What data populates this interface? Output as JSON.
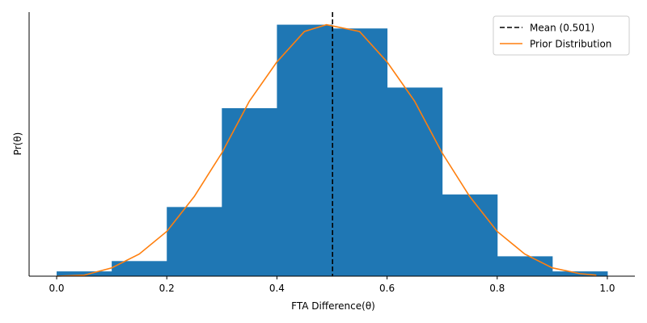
{
  "chart_data": {
    "type": "bar",
    "subtype": "histogram",
    "xlabel": "FTA Difference(θ)",
    "ylabel": "Pr(θ)",
    "xlim": [
      -0.05,
      1.05
    ],
    "ylim": [
      0,
      1.05
    ],
    "y_ticks_shown": false,
    "x_ticks": [
      "0.0",
      "0.2",
      "0.4",
      "0.6",
      "0.8",
      "1.0"
    ],
    "x_tick_values": [
      0.0,
      0.2,
      0.4,
      0.6,
      0.8,
      1.0
    ],
    "bin_edges": [
      0.0,
      0.1,
      0.2,
      0.3,
      0.4,
      0.5,
      0.6,
      0.7,
      0.8,
      0.9,
      1.0
    ],
    "bin_values": [
      0.019,
      0.06,
      0.275,
      0.668,
      1.0,
      0.985,
      0.75,
      0.325,
      0.079,
      0.019
    ],
    "bar_color": "#1f77b4",
    "mean": {
      "value": 0.501,
      "label": "Mean (0.501)",
      "color": "#000000",
      "style": "dashed"
    },
    "prior": {
      "label": "Prior Distribution",
      "color": "#ff7f0e",
      "x": [
        0.0,
        0.05,
        0.1,
        0.15,
        0.2,
        0.25,
        0.3,
        0.35,
        0.4,
        0.45,
        0.49,
        0.55,
        0.6,
        0.65,
        0.7,
        0.75,
        0.8,
        0.85,
        0.9,
        0.95,
        0.98
      ],
      "y": [
        0.0,
        0.004,
        0.033,
        0.088,
        0.178,
        0.317,
        0.49,
        0.696,
        0.852,
        0.973,
        1.0,
        0.973,
        0.852,
        0.696,
        0.49,
        0.317,
        0.178,
        0.088,
        0.033,
        0.01,
        0.004
      ]
    },
    "legend_position": "top-right",
    "grid": false
  }
}
